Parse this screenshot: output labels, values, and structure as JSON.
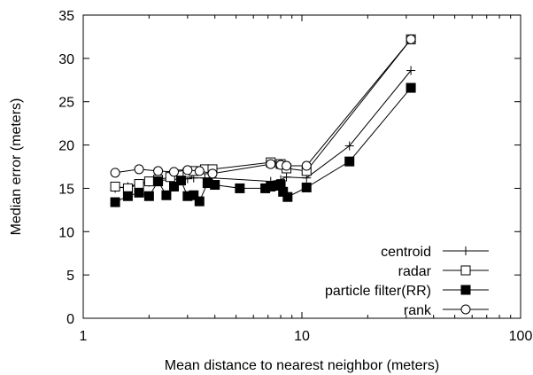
{
  "chart_data": {
    "type": "line",
    "title": "",
    "xlabel": "Mean distance to nearest neighbor (meters)",
    "ylabel": "Median error (meters)",
    "xscale": "log",
    "xlim": [
      1,
      100
    ],
    "ylim": [
      0,
      35
    ],
    "xticks": [
      1,
      10,
      100
    ],
    "xtick_labels": [
      "1",
      "10",
      "100"
    ],
    "yticks": [
      0,
      5,
      10,
      15,
      20,
      25,
      30,
      35
    ],
    "ytick_labels": [
      "0",
      "5",
      "10",
      "15",
      "20",
      "25",
      "30",
      "35"
    ],
    "grid": false,
    "legend_position": "bottom-right",
    "series": [
      {
        "name": "centroid",
        "marker": "plus",
        "x": [
          1.4,
          1.6,
          1.8,
          2.0,
          2.2,
          2.5,
          2.8,
          3.0,
          3.2,
          3.6,
          3.9,
          7.2,
          8.0,
          8.5,
          10.5,
          16.5,
          31.5
        ],
        "y": [
          15.0,
          15.2,
          15.5,
          15.7,
          15.9,
          16.0,
          16.1,
          16.1,
          16.2,
          16.2,
          16.2,
          15.8,
          16.0,
          16.3,
          16.2,
          19.9,
          28.6
        ]
      },
      {
        "name": "radar",
        "marker": "square-open",
        "x": [
          1.4,
          1.6,
          1.8,
          2.0,
          2.2,
          2.5,
          2.8,
          3.0,
          3.2,
          3.6,
          3.9,
          7.2,
          8.0,
          8.5,
          10.5,
          31.5
        ],
        "y": [
          15.2,
          15.0,
          15.5,
          15.8,
          16.0,
          16.3,
          16.6,
          16.8,
          17.0,
          17.2,
          17.2,
          18.0,
          17.8,
          17.3,
          17.0,
          32.2
        ]
      },
      {
        "name": "particle filter(RR)",
        "marker": "square-filled",
        "x": [
          1.4,
          1.6,
          1.8,
          2.0,
          2.2,
          2.4,
          2.6,
          2.8,
          3.0,
          3.2,
          3.4,
          3.7,
          4.0,
          5.2,
          6.8,
          7.2,
          7.6,
          8.0,
          8.2,
          8.6,
          10.5,
          16.5,
          31.5
        ],
        "y": [
          13.4,
          14.1,
          14.5,
          14.1,
          15.8,
          14.2,
          15.2,
          15.9,
          14.1,
          14.2,
          13.5,
          15.6,
          15.4,
          15.0,
          15.0,
          15.2,
          15.3,
          15.4,
          14.6,
          14.0,
          15.1,
          18.1,
          26.6
        ]
      },
      {
        "name": "rank",
        "marker": "circle-open",
        "x": [
          1.4,
          1.8,
          2.2,
          2.6,
          3.0,
          3.4,
          3.9,
          7.2,
          8.0,
          8.5,
          10.5,
          31.5
        ],
        "y": [
          16.8,
          17.2,
          17.0,
          16.9,
          17.1,
          17.0,
          16.7,
          17.8,
          17.7,
          17.6,
          17.6,
          32.2
        ]
      }
    ]
  }
}
